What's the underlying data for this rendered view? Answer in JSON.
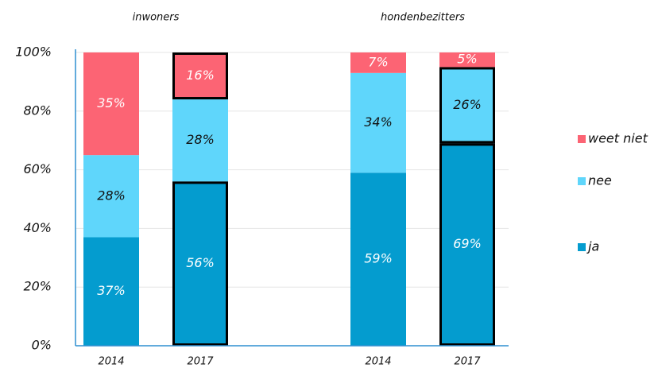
{
  "chart_data": {
    "type": "stacked_bar",
    "groups": [
      "inwoners",
      "hondenbezitters"
    ],
    "categories": [
      "2014",
      "2017",
      "2014",
      "2017"
    ],
    "series": [
      {
        "name": "ja",
        "color": "#049ccf",
        "label_color": "#ffffff",
        "values": [
          37,
          56,
          59,
          69
        ],
        "value_labels": [
          "37%",
          "56%",
          "59%",
          "69%"
        ],
        "outline": [
          false,
          true,
          false,
          true
        ]
      },
      {
        "name": "nee",
        "color": "#5fd6fb",
        "label_color": "#111111",
        "values": [
          28,
          28,
          34,
          26
        ],
        "value_labels": [
          "28%",
          "28%",
          "34%",
          "26%"
        ],
        "outline": [
          false,
          false,
          false,
          true
        ]
      },
      {
        "name": "weet niet",
        "color": "#fc6474",
        "label_color": "#ffffff",
        "values": [
          35,
          16,
          7,
          5
        ],
        "value_labels": [
          "35%",
          "16%",
          "7%",
          "5%"
        ],
        "outline": [
          false,
          true,
          false,
          false
        ]
      }
    ],
    "ylim": [
      0,
      100
    ],
    "yticks": [
      {
        "value": 0,
        "label": "0%"
      },
      {
        "value": 20,
        "label": "20%"
      },
      {
        "value": 40,
        "label": "40%"
      },
      {
        "value": 60,
        "label": "60%"
      },
      {
        "value": 80,
        "label": "80%"
      },
      {
        "value": 100,
        "label": "100%"
      }
    ],
    "grid": true
  }
}
